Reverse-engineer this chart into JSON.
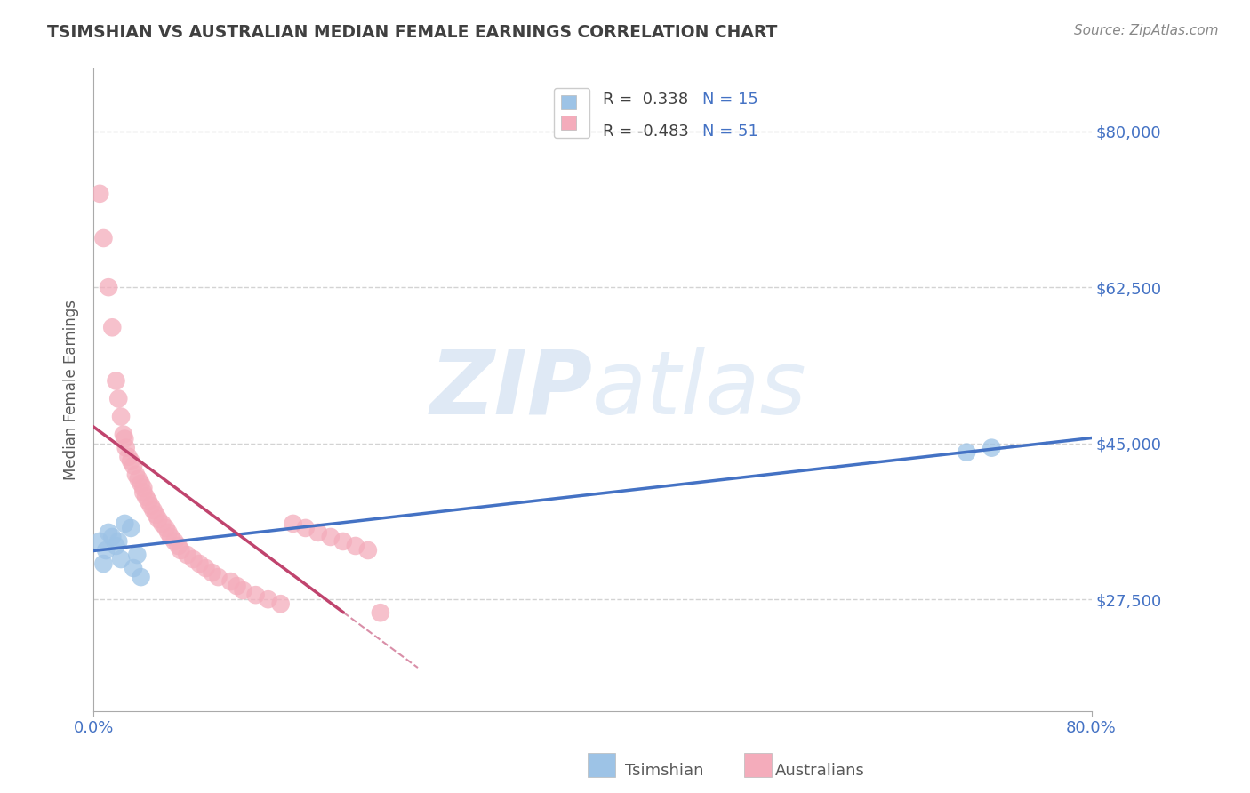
{
  "title": "TSIMSHIAN VS AUSTRALIAN MEDIAN FEMALE EARNINGS CORRELATION CHART",
  "source": "Source: ZipAtlas.com",
  "ylabel": "Median Female Earnings",
  "y_tick_values": [
    27500,
    45000,
    62500,
    80000
  ],
  "y_tick_labels": [
    "$27,500",
    "$45,000",
    "$62,500",
    "$80,000"
  ],
  "x_min": 0.0,
  "x_max": 0.8,
  "y_min": 15000,
  "y_max": 87000,
  "watermark_zip": "ZIP",
  "watermark_atlas": "atlas",
  "tsimshian_scatter": [
    [
      0.005,
      34000
    ],
    [
      0.008,
      31500
    ],
    [
      0.01,
      33000
    ],
    [
      0.012,
      35000
    ],
    [
      0.015,
      34500
    ],
    [
      0.018,
      33500
    ],
    [
      0.02,
      34000
    ],
    [
      0.022,
      32000
    ],
    [
      0.025,
      36000
    ],
    [
      0.03,
      35500
    ],
    [
      0.032,
      31000
    ],
    [
      0.035,
      32500
    ],
    [
      0.038,
      30000
    ],
    [
      0.7,
      44000
    ],
    [
      0.72,
      44500
    ]
  ],
  "australian_scatter": [
    [
      0.005,
      73000
    ],
    [
      0.008,
      68000
    ],
    [
      0.012,
      62500
    ],
    [
      0.015,
      58000
    ],
    [
      0.018,
      52000
    ],
    [
      0.02,
      50000
    ],
    [
      0.022,
      48000
    ],
    [
      0.024,
      46000
    ],
    [
      0.025,
      45500
    ],
    [
      0.026,
      44500
    ],
    [
      0.028,
      43500
    ],
    [
      0.03,
      43000
    ],
    [
      0.032,
      42500
    ],
    [
      0.034,
      41500
    ],
    [
      0.036,
      41000
    ],
    [
      0.038,
      40500
    ],
    [
      0.04,
      40000
    ],
    [
      0.04,
      39500
    ],
    [
      0.042,
      39000
    ],
    [
      0.044,
      38500
    ],
    [
      0.046,
      38000
    ],
    [
      0.048,
      37500
    ],
    [
      0.05,
      37000
    ],
    [
      0.052,
      36500
    ],
    [
      0.055,
      36000
    ],
    [
      0.058,
      35500
    ],
    [
      0.06,
      35000
    ],
    [
      0.062,
      34500
    ],
    [
      0.065,
      34000
    ],
    [
      0.068,
      33500
    ],
    [
      0.07,
      33000
    ],
    [
      0.075,
      32500
    ],
    [
      0.08,
      32000
    ],
    [
      0.085,
      31500
    ],
    [
      0.09,
      31000
    ],
    [
      0.095,
      30500
    ],
    [
      0.1,
      30000
    ],
    [
      0.11,
      29500
    ],
    [
      0.115,
      29000
    ],
    [
      0.12,
      28500
    ],
    [
      0.13,
      28000
    ],
    [
      0.14,
      27500
    ],
    [
      0.15,
      27000
    ],
    [
      0.16,
      36000
    ],
    [
      0.17,
      35500
    ],
    [
      0.18,
      35000
    ],
    [
      0.19,
      34500
    ],
    [
      0.2,
      34000
    ],
    [
      0.21,
      33500
    ],
    [
      0.22,
      33000
    ],
    [
      0.23,
      26000
    ]
  ],
  "tsimshian_line_color": "#4472c4",
  "australian_line_color": "#c0446e",
  "tsimshian_dot_color": "#9dc3e6",
  "australian_dot_color": "#f4acbb",
  "background_color": "#ffffff",
  "grid_color": "#c8c8c8",
  "title_color": "#404040",
  "axis_label_color": "#595959",
  "tick_label_color": "#4472c4",
  "source_color": "#888888",
  "legend_r1": "R =  0.338",
  "legend_n1": "N = 15",
  "legend_r2": "R = -0.483",
  "legend_n2": "N = 51",
  "bottom_label1": "Tsimshian",
  "bottom_label2": "Australians"
}
